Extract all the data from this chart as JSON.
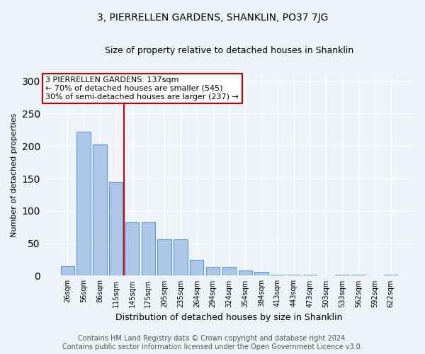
{
  "title": "3, PIERRELLEN GARDENS, SHANKLIN, PO37 7JG",
  "subtitle": "Size of property relative to detached houses in Shanklin",
  "xlabel": "Distribution of detached houses by size in Shanklin",
  "ylabel": "Number of detached properties",
  "bar_labels": [
    "26sqm",
    "56sqm",
    "86sqm",
    "115sqm",
    "145sqm",
    "175sqm",
    "205sqm",
    "235sqm",
    "264sqm",
    "294sqm",
    "324sqm",
    "354sqm",
    "384sqm",
    "413sqm",
    "443sqm",
    "473sqm",
    "503sqm",
    "533sqm",
    "562sqm",
    "592sqm",
    "622sqm"
  ],
  "bar_values": [
    15,
    222,
    203,
    145,
    82,
    82,
    56,
    56,
    25,
    14,
    14,
    8,
    6,
    2,
    2,
    2,
    0,
    2,
    2,
    0,
    2
  ],
  "bar_color": "#aec6e8",
  "bar_edge_color": "#5b9bd5",
  "vline_color": "#cc0000",
  "vline_position": 3.5,
  "annotation_text": "3 PIERRELLEN GARDENS: 137sqm\n← 70% of detached houses are smaller (545)\n30% of semi-detached houses are larger (237) →",
  "annotation_box_color": "#ffffff",
  "annotation_box_edge_color": "#cc0000",
  "ylim": [
    0,
    310
  ],
  "yticks": [
    0,
    50,
    100,
    150,
    200,
    250,
    300
  ],
  "background_color": "#eef2f9",
  "grid_color": "#ffffff",
  "footer_text": "Contains HM Land Registry data © Crown copyright and database right 2024.\nContains public sector information licensed under the Open Government Licence v3.0.",
  "title_fontsize": 10,
  "subtitle_fontsize": 9,
  "ylabel_fontsize": 8,
  "xlabel_fontsize": 9,
  "tick_fontsize": 7,
  "annotation_fontsize": 8,
  "footer_fontsize": 7
}
